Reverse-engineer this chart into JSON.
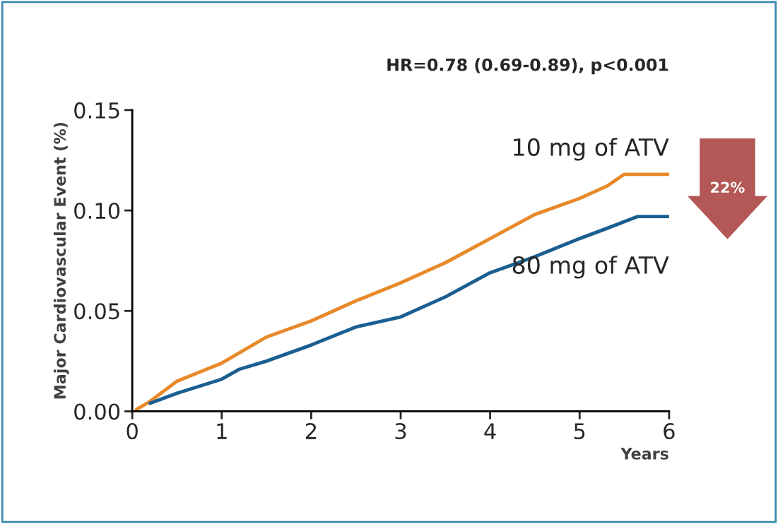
{
  "chart_data": {
    "type": "line",
    "title": "HR=0.78 (0.69-0.89), p<0.001",
    "xlabel": "Years",
    "ylabel": "Major Cardiovascular Event (%)",
    "xlim": [
      0,
      6
    ],
    "ylim": [
      0,
      0.15
    ],
    "xticks": [
      0,
      1,
      2,
      3,
      4,
      5,
      6
    ],
    "yticks": [
      {
        "value": 0,
        "label": "0.00"
      },
      {
        "value": 0.05,
        "label": "0.05"
      },
      {
        "value": 0.1,
        "label": "0.10"
      },
      {
        "value": 0.15,
        "label": "0.15"
      }
    ],
    "legend": false,
    "grid": false,
    "series": [
      {
        "name": "10 mg of ATV",
        "color": "#e8892a",
        "x": [
          0.05,
          0.2,
          0.5,
          1,
          1.5,
          2,
          2.5,
          3,
          3.5,
          4,
          4.5,
          5,
          5.3,
          5.5,
          6
        ],
        "values": [
          0.001,
          0.005,
          0.015,
          0.024,
          0.037,
          0.045,
          0.055,
          0.064,
          0.074,
          0.086,
          0.098,
          0.106,
          0.112,
          0.118,
          0.118
        ]
      },
      {
        "name": "80 mg of ATV",
        "color": "#1a5f91",
        "x": [
          0.2,
          0.5,
          1,
          1.2,
          1.5,
          2,
          2.5,
          3,
          3.5,
          4,
          4.5,
          5,
          5.3,
          5.65,
          6
        ],
        "values": [
          0.004,
          0.009,
          0.016,
          0.021,
          0.025,
          0.033,
          0.042,
          0.047,
          0.057,
          0.069,
          0.077,
          0.086,
          0.091,
          0.097,
          0.097
        ]
      }
    ],
    "annotations": [
      "22%"
    ]
  }
}
